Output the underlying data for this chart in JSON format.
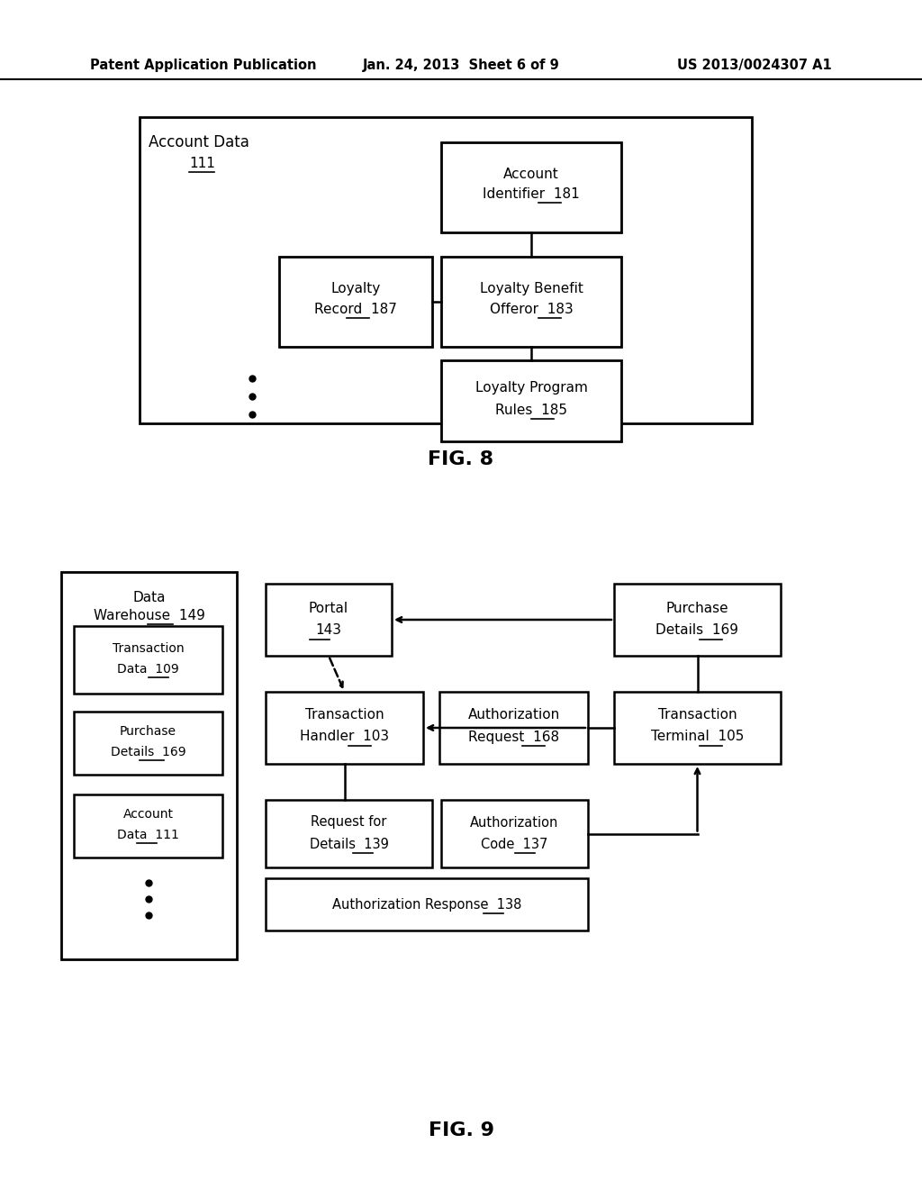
{
  "header_left": "Patent Application Publication",
  "header_mid": "Jan. 24, 2013  Sheet 6 of 9",
  "header_right": "US 2013/0024307 A1",
  "fig8_caption": "FIG. 8",
  "fig9_caption": "FIG. 9",
  "bg_color": "#ffffff"
}
